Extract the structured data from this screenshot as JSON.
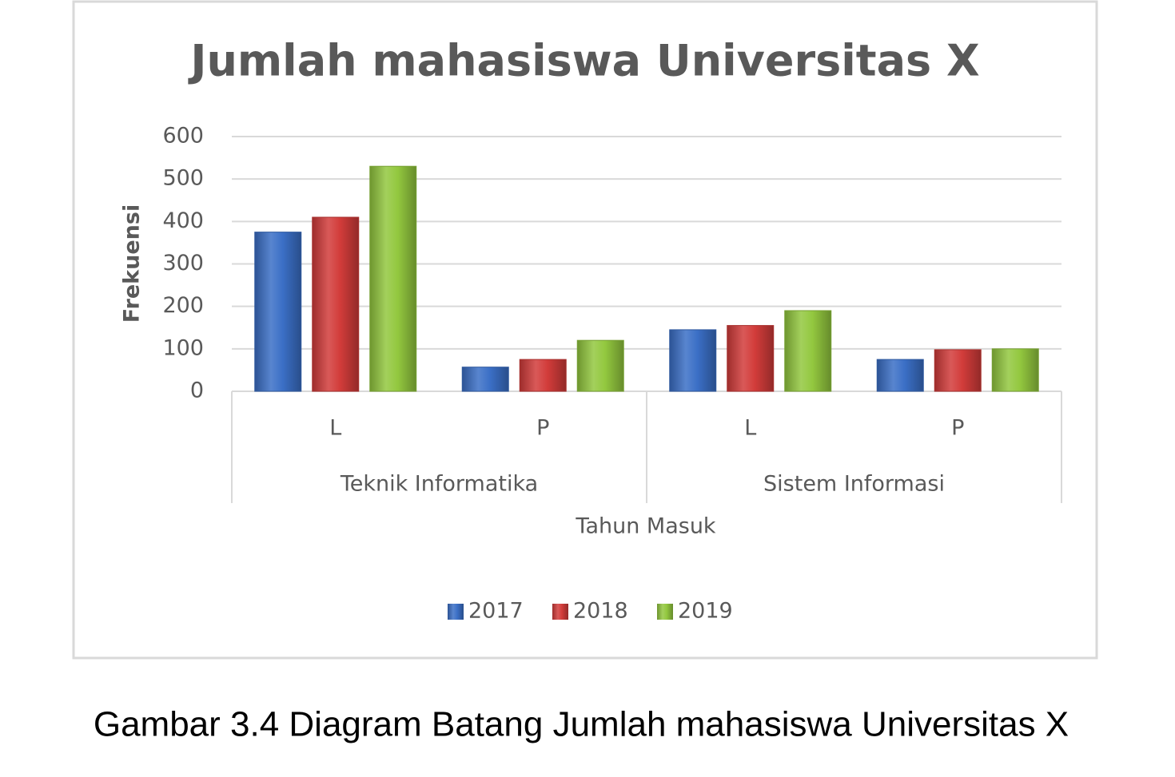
{
  "chart_data": {
    "type": "bar",
    "title": "Jumlah mahasiswa Universitas X",
    "categories": [
      "L",
      "P",
      "L",
      "P"
    ],
    "groups": [
      "Teknik Informatika",
      "Sistem Informasi"
    ],
    "x_label": "Tahun Masuk",
    "y_label": "Frekuensi",
    "series": [
      {
        "name": "2017",
        "color": "#3b6fc6",
        "values": [
          375,
          57,
          145,
          75
        ]
      },
      {
        "name": "2018",
        "color": "#d23c3a",
        "values": [
          410,
          75,
          155,
          98
        ]
      },
      {
        "name": "2019",
        "color": "#93c83f",
        "values": [
          530,
          120,
          190,
          100
        ]
      }
    ],
    "ylim": [
      0,
      600
    ],
    "yticks": [
      0,
      100,
      200,
      300,
      400,
      500,
      600
    ],
    "grid": true,
    "legend": "bottom",
    "caption": "Gambar 3.4 Diagram Batang Jumlah mahasiswa Universitas X"
  }
}
